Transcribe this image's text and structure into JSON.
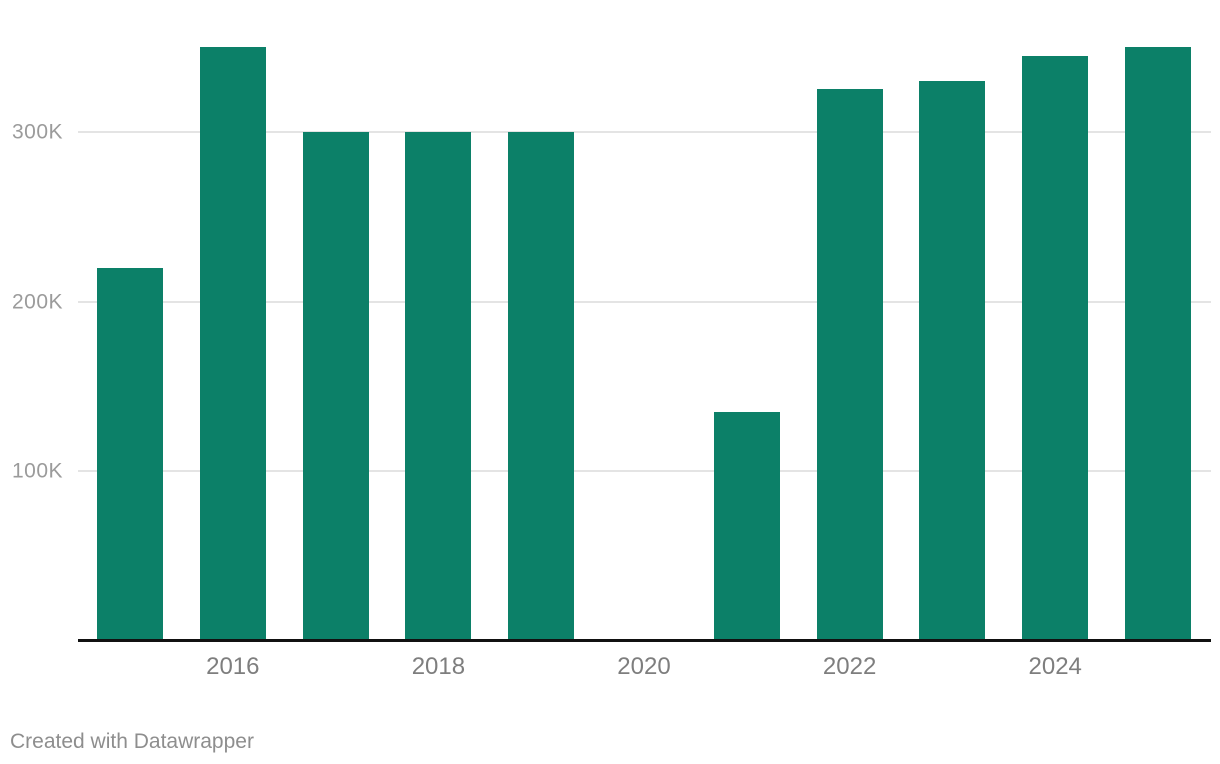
{
  "attribution": "Created with Datawrapper",
  "colors": {
    "background": "#ffffff",
    "bar": "#0c8068",
    "gridline": "#e4e4e4",
    "axis_line": "#111111",
    "y_tick_label": "#9b9b9b",
    "x_tick_label": "#7e7e7e",
    "attribution": "#8e8e8e"
  },
  "chart_data": {
    "type": "bar",
    "title": "",
    "categories": [
      "2015",
      "2016",
      "2017",
      "2018",
      "2019",
      "2020",
      "2021",
      "2022",
      "2023",
      "2024",
      "2025"
    ],
    "values": [
      220000,
      350000,
      300000,
      300000,
      300000,
      0,
      135000,
      325000,
      330000,
      345000,
      350000
    ],
    "xticks": [
      "2016",
      "2018",
      "2020",
      "2022",
      "2024"
    ],
    "yticks": [
      {
        "value": 100000,
        "label": "100K"
      },
      {
        "value": 200000,
        "label": "200K"
      },
      {
        "value": 300000,
        "label": "300K"
      }
    ],
    "xlabel": "",
    "ylabel": "",
    "ylim": [
      0,
      377000
    ],
    "grid": "horizontal-only",
    "legend": "none",
    "missing_categories": [
      "2020"
    ]
  }
}
